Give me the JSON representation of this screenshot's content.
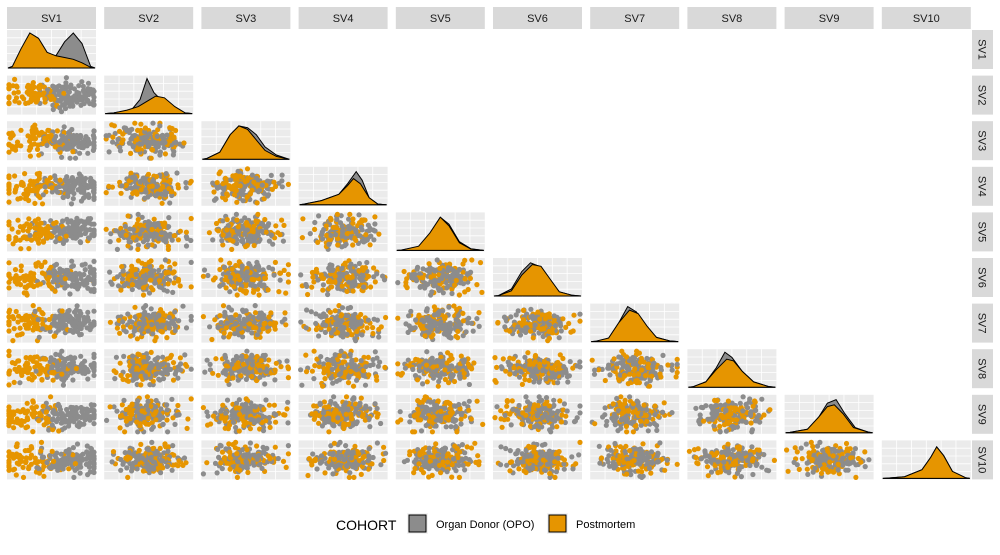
{
  "chart_data": {
    "type": "scatter-matrix",
    "variables": [
      "SV1",
      "SV2",
      "SV3",
      "SV4",
      "SV5",
      "SV6",
      "SV7",
      "SV8",
      "SV9",
      "SV10"
    ],
    "layout": "lower-triangle scatter plots with diagonal density plots",
    "legend": {
      "title": "COHORT",
      "position": "bottom",
      "entries": [
        {
          "label": "Organ Donor (OPO)",
          "color": "#8c8c8c"
        },
        {
          "label": "Postmortem",
          "color": "#e69500"
        }
      ]
    },
    "series": [
      {
        "name": "Organ Donor (OPO)",
        "color": "#8c8c8c"
      },
      {
        "name": "Postmortem",
        "color": "#e69500"
      }
    ],
    "diagonal_densities": [
      {
        "variable": "SV1",
        "opo": [
          [
            0.25,
            0.02
          ],
          [
            0.45,
            0.1
          ],
          [
            0.55,
            0.35
          ],
          [
            0.65,
            0.75
          ],
          [
            0.75,
            1.0
          ],
          [
            0.85,
            0.7
          ],
          [
            0.95,
            0.05
          ]
        ],
        "postmortem": [
          [
            0.05,
            0.05
          ],
          [
            0.15,
            0.55
          ],
          [
            0.25,
            1.0
          ],
          [
            0.35,
            0.85
          ],
          [
            0.45,
            0.45
          ],
          [
            0.55,
            0.35
          ],
          [
            0.65,
            0.3
          ],
          [
            0.75,
            0.25
          ],
          [
            0.85,
            0.15
          ],
          [
            0.95,
            0.02
          ]
        ]
      },
      {
        "variable": "SV2",
        "opo": [
          [
            0.1,
            0.02
          ],
          [
            0.3,
            0.1
          ],
          [
            0.4,
            0.4
          ],
          [
            0.48,
            1.0
          ],
          [
            0.56,
            0.6
          ],
          [
            0.66,
            0.35
          ],
          [
            0.8,
            0.1
          ],
          [
            0.92,
            0.02
          ]
        ],
        "postmortem": [
          [
            0.1,
            0.02
          ],
          [
            0.25,
            0.1
          ],
          [
            0.38,
            0.2
          ],
          [
            0.48,
            0.35
          ],
          [
            0.58,
            0.5
          ],
          [
            0.68,
            0.45
          ],
          [
            0.8,
            0.2
          ],
          [
            0.92,
            0.02
          ]
        ]
      },
      {
        "variable": "SV3",
        "opo": [
          [
            0.05,
            0.02
          ],
          [
            0.2,
            0.2
          ],
          [
            0.32,
            0.7
          ],
          [
            0.42,
            0.95
          ],
          [
            0.52,
            0.9
          ],
          [
            0.62,
            0.7
          ],
          [
            0.72,
            0.35
          ],
          [
            0.85,
            0.12
          ],
          [
            0.97,
            0.02
          ]
        ],
        "postmortem": [
          [
            0.05,
            0.02
          ],
          [
            0.2,
            0.2
          ],
          [
            0.32,
            0.7
          ],
          [
            0.42,
            0.95
          ],
          [
            0.52,
            0.85
          ],
          [
            0.62,
            0.55
          ],
          [
            0.72,
            0.25
          ],
          [
            0.85,
            0.08
          ],
          [
            0.97,
            0.01
          ]
        ]
      },
      {
        "variable": "SV4",
        "opo": [
          [
            0.05,
            0.02
          ],
          [
            0.25,
            0.12
          ],
          [
            0.45,
            0.3
          ],
          [
            0.55,
            0.6
          ],
          [
            0.65,
            0.95
          ],
          [
            0.72,
            0.7
          ],
          [
            0.8,
            0.2
          ],
          [
            0.9,
            0.02
          ]
        ],
        "postmortem": [
          [
            0.05,
            0.02
          ],
          [
            0.25,
            0.12
          ],
          [
            0.45,
            0.3
          ],
          [
            0.55,
            0.55
          ],
          [
            0.62,
            0.75
          ],
          [
            0.7,
            0.6
          ],
          [
            0.8,
            0.2
          ],
          [
            0.9,
            0.02
          ]
        ]
      },
      {
        "variable": "SV5",
        "opo": [
          [
            0.05,
            0.01
          ],
          [
            0.25,
            0.1
          ],
          [
            0.38,
            0.45
          ],
          [
            0.5,
            0.95
          ],
          [
            0.6,
            0.75
          ],
          [
            0.72,
            0.25
          ],
          [
            0.85,
            0.05
          ],
          [
            0.97,
            0.01
          ]
        ],
        "postmortem": [
          [
            0.05,
            0.01
          ],
          [
            0.25,
            0.12
          ],
          [
            0.38,
            0.5
          ],
          [
            0.5,
            0.95
          ],
          [
            0.6,
            0.7
          ],
          [
            0.72,
            0.22
          ],
          [
            0.85,
            0.04
          ],
          [
            0.97,
            0.01
          ]
        ]
      },
      {
        "variable": "SV6",
        "opo": [
          [
            0.05,
            0.01
          ],
          [
            0.2,
            0.2
          ],
          [
            0.32,
            0.7
          ],
          [
            0.42,
            0.95
          ],
          [
            0.52,
            0.85
          ],
          [
            0.62,
            0.5
          ],
          [
            0.75,
            0.12
          ],
          [
            0.9,
            0.02
          ]
        ],
        "postmortem": [
          [
            0.05,
            0.01
          ],
          [
            0.2,
            0.15
          ],
          [
            0.32,
            0.6
          ],
          [
            0.44,
            0.9
          ],
          [
            0.54,
            0.85
          ],
          [
            0.64,
            0.5
          ],
          [
            0.75,
            0.12
          ],
          [
            0.9,
            0.02
          ]
        ]
      },
      {
        "variable": "SV7",
        "opo": [
          [
            0.05,
            0.01
          ],
          [
            0.2,
            0.1
          ],
          [
            0.32,
            0.55
          ],
          [
            0.42,
            1.0
          ],
          [
            0.52,
            0.85
          ],
          [
            0.62,
            0.45
          ],
          [
            0.75,
            0.12
          ],
          [
            0.9,
            0.02
          ]
        ],
        "postmortem": [
          [
            0.05,
            0.01
          ],
          [
            0.2,
            0.1
          ],
          [
            0.32,
            0.55
          ],
          [
            0.44,
            0.9
          ],
          [
            0.54,
            0.8
          ],
          [
            0.64,
            0.45
          ],
          [
            0.75,
            0.12
          ],
          [
            0.9,
            0.02
          ]
        ]
      },
      {
        "variable": "SV8",
        "opo": [
          [
            0.05,
            0.01
          ],
          [
            0.2,
            0.15
          ],
          [
            0.32,
            0.55
          ],
          [
            0.42,
            1.0
          ],
          [
            0.5,
            0.85
          ],
          [
            0.62,
            0.45
          ],
          [
            0.75,
            0.15
          ],
          [
            0.92,
            0.02
          ]
        ],
        "postmortem": [
          [
            0.05,
            0.01
          ],
          [
            0.2,
            0.15
          ],
          [
            0.32,
            0.5
          ],
          [
            0.44,
            0.8
          ],
          [
            0.52,
            0.75
          ],
          [
            0.62,
            0.45
          ],
          [
            0.75,
            0.15
          ],
          [
            0.92,
            0.02
          ]
        ]
      },
      {
        "variable": "SV9",
        "opo": [
          [
            0.05,
            0.01
          ],
          [
            0.25,
            0.1
          ],
          [
            0.38,
            0.45
          ],
          [
            0.48,
            0.85
          ],
          [
            0.58,
            0.95
          ],
          [
            0.68,
            0.55
          ],
          [
            0.8,
            0.15
          ],
          [
            0.95,
            0.02
          ]
        ],
        "postmortem": [
          [
            0.05,
            0.01
          ],
          [
            0.25,
            0.1
          ],
          [
            0.38,
            0.45
          ],
          [
            0.48,
            0.75
          ],
          [
            0.56,
            0.8
          ],
          [
            0.66,
            0.55
          ],
          [
            0.78,
            0.15
          ],
          [
            0.95,
            0.02
          ]
        ]
      },
      {
        "variable": "SV10",
        "opo": [
          [
            0.05,
            0.01
          ],
          [
            0.25,
            0.05
          ],
          [
            0.45,
            0.25
          ],
          [
            0.55,
            0.6
          ],
          [
            0.62,
            0.9
          ],
          [
            0.7,
            0.65
          ],
          [
            0.8,
            0.2
          ],
          [
            0.95,
            0.02
          ]
        ],
        "postmortem": [
          [
            0.05,
            0.01
          ],
          [
            0.25,
            0.05
          ],
          [
            0.45,
            0.25
          ],
          [
            0.55,
            0.6
          ],
          [
            0.62,
            0.9
          ],
          [
            0.7,
            0.65
          ],
          [
            0.8,
            0.2
          ],
          [
            0.95,
            0.02
          ]
        ]
      }
    ],
    "grid": true,
    "axis_tick_labels": false
  }
}
